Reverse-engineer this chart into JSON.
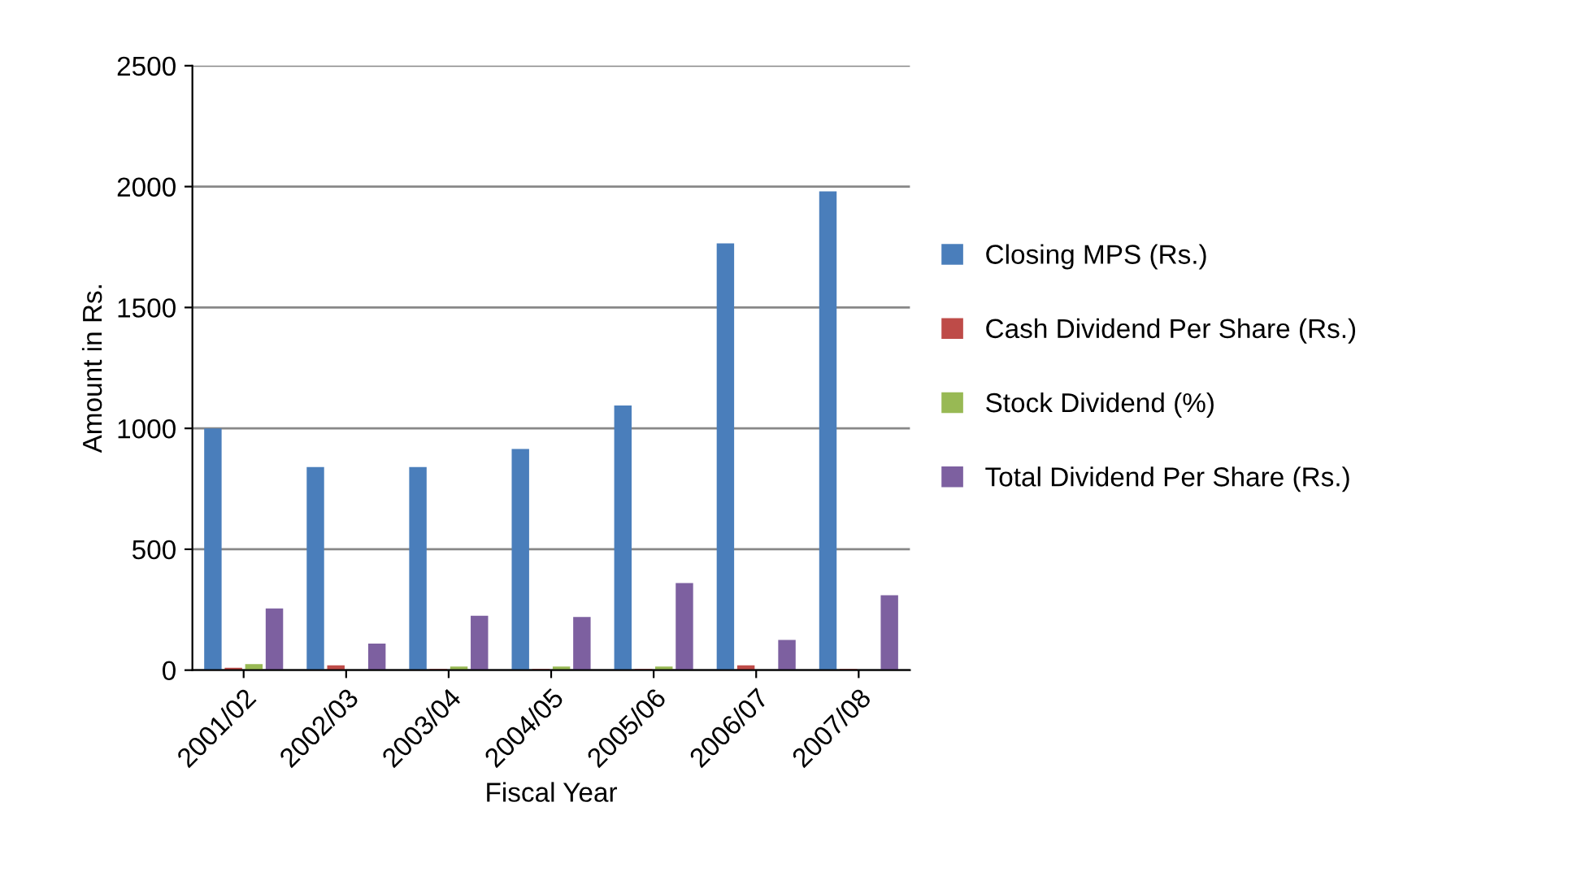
{
  "chart_data": {
    "type": "bar",
    "xlabel": "Fiscal Year",
    "ylabel": "Amount in Rs.",
    "categories": [
      "2001/02",
      "2002/03",
      "2003/04",
      "2004/05",
      "2005/06",
      "2006/07",
      "2007/08"
    ],
    "series": [
      {
        "name": "Closing MPS (Rs.)",
        "color": "#4a7ebb",
        "values": [
          1000,
          840,
          840,
          915,
          1095,
          1765,
          1980
        ]
      },
      {
        "name": "Cash Dividend Per Share (Rs.)",
        "color": "#be4b48",
        "values": [
          10,
          20,
          5,
          5,
          5,
          20,
          5
        ]
      },
      {
        "name": "Stock Dividend (%)",
        "color": "#98b954",
        "values": [
          25,
          null,
          15,
          15,
          15,
          null,
          0
        ]
      },
      {
        "name": "Total Dividend Per Share (Rs.)",
        "color": "#7d60a0",
        "values": [
          255,
          110,
          225,
          220,
          360,
          125,
          310
        ]
      }
    ],
    "ylim": [
      0,
      2500
    ],
    "yticks": [
      0,
      500,
      1000,
      1500,
      2000,
      2500
    ],
    "grid": "y",
    "legend": "right"
  }
}
